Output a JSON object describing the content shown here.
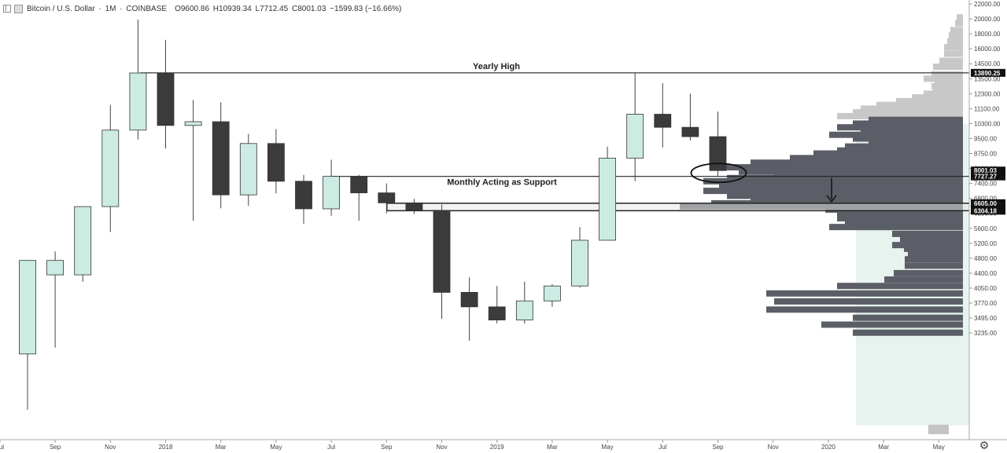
{
  "header": {
    "symbol": "Bitcoin / U.S. Dollar",
    "interval": "1M",
    "exchange": "COINBASE",
    "open": "O9600.86",
    "high": "H10939.34",
    "low": "L7712.45",
    "close": "C8001.03",
    "change": "−1599.83 (−16.66%)"
  },
  "colors": {
    "up_fill": "#cbebe3",
    "down_fill": "#3b3b3b",
    "wick": "#444444",
    "profile_dark": "#5b5e66",
    "profile_light": "#c8c8c8",
    "profile_bg": "#e6f3ef"
  },
  "chart_data": {
    "type": "candlestick",
    "y_axis": {
      "ticks": [
        "22000.00",
        "20000.00",
        "18000.00",
        "16000.00",
        "14500.00",
        "13500.00",
        "12300.00",
        "11100.00",
        "10300.00",
        "9500.00",
        "8750.00",
        "8100.00",
        "7400.00",
        "6800.00",
        "6200.00",
        "5600.00",
        "5200.00",
        "4800.00",
        "4400.00",
        "4050.00",
        "3770.00",
        "3495.00",
        "3235.00"
      ],
      "tick_values": [
        22000,
        20000,
        18000,
        16000,
        14500,
        13500,
        12300,
        11100,
        10300,
        9500,
        8750,
        8100,
        7400,
        6800,
        6200,
        5600,
        5200,
        4800,
        4400,
        4050,
        3770,
        3495,
        3235
      ]
    },
    "x_axis": {
      "labels": [
        "Jul",
        "Sep",
        "Nov",
        "2018",
        "Mar",
        "May",
        "Jul",
        "Sep",
        "Nov",
        "2019",
        "Mar",
        "May",
        "Jul",
        "Sep",
        "Nov",
        "2020",
        "Mar",
        "May"
      ],
      "label_index": [
        -1,
        1,
        3,
        5,
        7,
        9,
        11,
        13,
        15,
        17,
        19,
        21,
        23,
        25,
        27,
        29,
        31,
        33
      ]
    },
    "candles": [
      {
        "o": 2870,
        "h": 4740,
        "l": 1900,
        "c": 4740
      },
      {
        "o": 4360,
        "h": 4980,
        "l": 2980,
        "c": 4740
      },
      {
        "o": 4360,
        "h": 6470,
        "l": 4200,
        "c": 6470
      },
      {
        "o": 6470,
        "h": 11400,
        "l": 5500,
        "c": 9950
      },
      {
        "o": 9950,
        "h": 19900,
        "l": 9450,
        "c": 13880
      },
      {
        "o": 13880,
        "h": 17200,
        "l": 9000,
        "c": 10200
      },
      {
        "o": 10200,
        "h": 11800,
        "l": 5900,
        "c": 10400
      },
      {
        "o": 10400,
        "h": 11600,
        "l": 6400,
        "c": 6940
      },
      {
        "o": 6940,
        "h": 9750,
        "l": 6500,
        "c": 9250
      },
      {
        "o": 9250,
        "h": 10000,
        "l": 7000,
        "c": 7500
      },
      {
        "o": 7500,
        "h": 7800,
        "l": 5780,
        "c": 6380
      },
      {
        "o": 6380,
        "h": 8480,
        "l": 6100,
        "c": 7730
      },
      {
        "o": 7730,
        "h": 7800,
        "l": 5900,
        "c": 7020
      },
      {
        "o": 7020,
        "h": 7400,
        "l": 6200,
        "c": 6620
      },
      {
        "o": 6620,
        "h": 6780,
        "l": 6170,
        "c": 6320
      },
      {
        "o": 6320,
        "h": 6550,
        "l": 3480,
        "c": 3970
      },
      {
        "o": 3970,
        "h": 4300,
        "l": 3100,
        "c": 3700
      },
      {
        "o": 3700,
        "h": 4100,
        "l": 3400,
        "c": 3460
      },
      {
        "o": 3460,
        "h": 4200,
        "l": 3400,
        "c": 3810
      },
      {
        "o": 3810,
        "h": 4140,
        "l": 3700,
        "c": 4100
      },
      {
        "o": 4100,
        "h": 5650,
        "l": 4060,
        "c": 5280
      },
      {
        "o": 5280,
        "h": 9090,
        "l": 5280,
        "c": 8550
      },
      {
        "o": 8550,
        "h": 13880,
        "l": 7500,
        "c": 10800
      },
      {
        "o": 10800,
        "h": 13150,
        "l": 9050,
        "c": 10100
      },
      {
        "o": 10100,
        "h": 12300,
        "l": 9400,
        "c": 9600
      },
      {
        "o": 9600.86,
        "h": 10939.34,
        "l": 7712.45,
        "c": 8001.03
      }
    ],
    "price_labels": [
      "13890.25",
      "8001.03",
      "7727.27",
      "6605.00",
      "6304.18"
    ],
    "price_label_values": [
      13890.25,
      8001.03,
      7727.27,
      6605.0,
      6304.18
    ],
    "annotations": [
      {
        "text": "Yearly High",
        "value": 13890.25
      },
      {
        "text": "Monthly Acting as Support",
        "value": 7727.27
      }
    ],
    "horizontal_lines": [
      13890.25,
      7727.27,
      6605.0,
      6304.18
    ],
    "volume_profile": {
      "dark": [
        [
          4770,
          74
        ],
        [
          4600,
          74
        ],
        [
          4400,
          88
        ],
        [
          4250,
          100
        ],
        [
          4100,
          160
        ],
        [
          3950,
          250
        ],
        [
          3800,
          240
        ],
        [
          3650,
          250
        ],
        [
          3500,
          140
        ],
        [
          3380,
          180
        ],
        [
          3240,
          140
        ]
      ],
      "dark_mid": [
        [
          6350,
          175
        ],
        [
          6150,
          160
        ],
        [
          6000,
          160
        ],
        [
          5850,
          150
        ],
        [
          5650,
          170
        ],
        [
          5450,
          90
        ],
        [
          5300,
          80
        ],
        [
          5150,
          90
        ],
        [
          5050,
          75
        ],
        [
          4950,
          70
        ],
        [
          4850,
          70
        ]
      ],
      "dark_upper": [
        [
          10500,
          120
        ],
        [
          10300,
          140
        ],
        [
          10100,
          160
        ],
        [
          9900,
          130
        ],
        [
          9700,
          170
        ],
        [
          9500,
          140
        ],
        [
          9300,
          120
        ],
        [
          9100,
          150
        ],
        [
          8900,
          160
        ],
        [
          8750,
          190
        ],
        [
          8550,
          220
        ],
        [
          8350,
          270
        ],
        [
          8150,
          320
        ],
        [
          7950,
          285
        ],
        [
          7800,
          240
        ],
        [
          7650,
          300
        ],
        [
          7500,
          330
        ],
        [
          7300,
          310
        ],
        [
          7100,
          330
        ],
        [
          6900,
          300
        ],
        [
          6750,
          270
        ],
        [
          6600,
          320
        ],
        [
          6480,
          360
        ]
      ],
      "light": [
        [
          13800,
          40
        ],
        [
          13500,
          50
        ],
        [
          13200,
          36
        ],
        [
          12900,
          40
        ],
        [
          12600,
          38
        ],
        [
          12300,
          50
        ],
        [
          12000,
          65
        ],
        [
          11700,
          85
        ],
        [
          11400,
          110
        ],
        [
          11100,
          130
        ],
        [
          10900,
          140
        ],
        [
          10700,
          160
        ],
        [
          14300,
          38
        ],
        [
          14800,
          30
        ],
        [
          15500,
          24
        ],
        [
          16200,
          24
        ],
        [
          17000,
          20
        ],
        [
          17800,
          18
        ],
        [
          18500,
          16
        ],
        [
          19400,
          10
        ],
        [
          20200,
          8
        ]
      ]
    }
  }
}
